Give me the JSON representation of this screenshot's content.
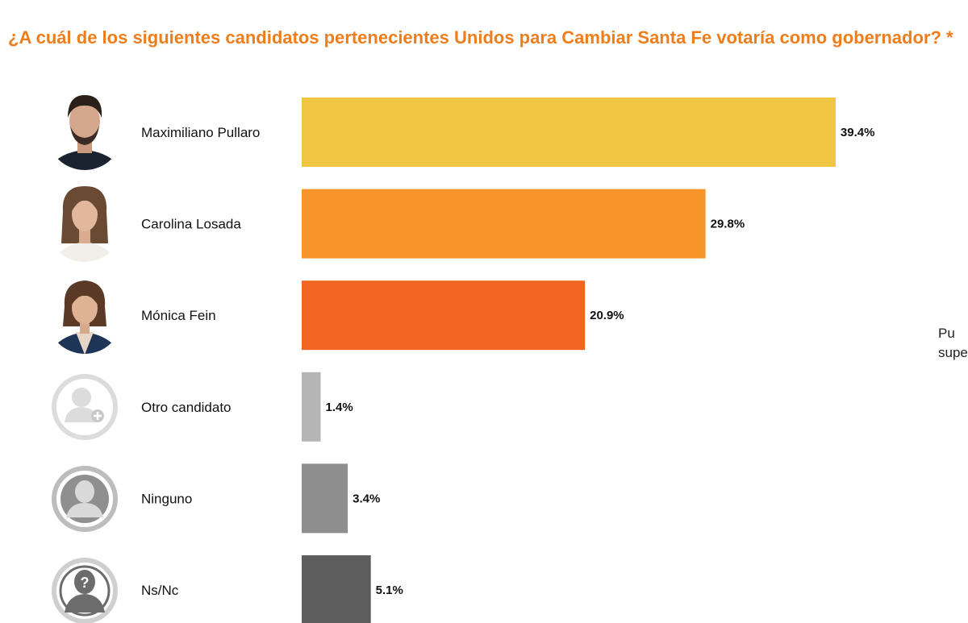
{
  "header": {
    "title": "¿A cuál de los siguientes candidatos pertenecientes Unidos para Cambiar Santa Fe votaría como gobernador? *"
  },
  "side_note": {
    "line1": "Pu",
    "line2": "supe"
  },
  "colors": {
    "title": "#ee7d1c",
    "pullaro": "#efc541",
    "losada": "#f7952b",
    "fein": "#f26422",
    "otro": "#b5b5b5",
    "ninguno": "#8e8e8e",
    "nsnc": "#5d5d5d"
  },
  "chart_data": {
    "type": "bar",
    "orientation": "horizontal",
    "title": "¿A cuál de los siguientes candidatos pertenecientes Unidos para Cambiar Santa Fe votaría como gobernador? *",
    "categories": [
      "Maximiliano Pullaro",
      "Carolina Losada",
      "Mónica Fein",
      "Otro candidato",
      "Ninguno",
      "Ns/Nc"
    ],
    "values": [
      39.4,
      29.8,
      20.9,
      1.4,
      3.4,
      5.1
    ],
    "value_labels": [
      "39.4%",
      "29.8%",
      "20.9%",
      "1.4%",
      "3.4%",
      "5.1%"
    ],
    "bar_colors": [
      "#efc541",
      "#f7952b",
      "#f26422",
      "#b5b5b5",
      "#8e8e8e",
      "#5d5d5d"
    ],
    "avatars": [
      "man-portrait",
      "woman-portrait",
      "woman-portrait",
      "user-plus-icon",
      "user-icon",
      "user-question-icon"
    ],
    "unit": "%",
    "xlim": [
      0,
      40
    ]
  }
}
